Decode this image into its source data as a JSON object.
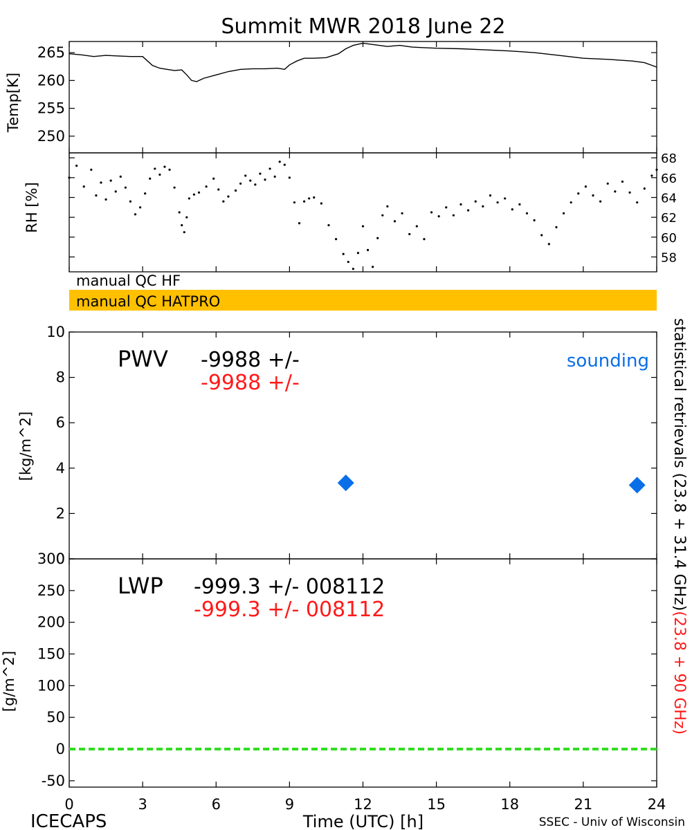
{
  "title": "Summit MWR 2018 June 22",
  "footer": {
    "left": "ICECAPS",
    "center": "Time (UTC) [h]",
    "right": "SSEC - Univ of Wisconsin"
  },
  "x_axis": {
    "label": "Time (UTC) [h]",
    "range": [
      0,
      24
    ],
    "ticks": [
      0,
      3,
      6,
      9,
      12,
      15,
      18,
      21,
      24
    ]
  },
  "flags": {
    "hf_label": "manual QC HF",
    "hatpro_label": "manual QC HATPRO",
    "hatpro_color": "#ffc000"
  },
  "right_label": {
    "black": "statistical retrievals (23.8 + 31.4 GHz)",
    "red": "(23.8 + 90 GHz)"
  },
  "pwv_panel": {
    "name": "PWV",
    "value_black": "-9988 +/-",
    "value_red": "-9988 +/-",
    "legend": "sounding",
    "ylabel": "[kg/m^2]"
  },
  "lwp_panel": {
    "name": "LWP",
    "value_black": "-999.3 +/- 008112",
    "value_red": "-999.3 +/- 008112",
    "ylabel": "[g/m^2]"
  },
  "colors": {
    "sounding": "#0a6ee8",
    "red_text": "#ff1a1a",
    "zero_line": "#33dd22",
    "flag_bar": "#ffc000"
  },
  "chart_data": [
    {
      "type": "line",
      "title": "Summit MWR 2018 June 22",
      "ylabel": "Temp[K]",
      "xlim": [
        0,
        24
      ],
      "ylim": [
        247,
        267
      ],
      "yticks": [
        250,
        255,
        260,
        265
      ],
      "series": [
        {
          "x": [
            0,
            0.5,
            1,
            1.5,
            2,
            2.5,
            3,
            3.2,
            3.4,
            3.7,
            4.0,
            4.3,
            4.6,
            4.8,
            5.0,
            5.2,
            5.5,
            6.0,
            6.5,
            7.0,
            7.5,
            8.0,
            8.5,
            8.8,
            9.0,
            9.3,
            9.6,
            10.0,
            10.5,
            11.0,
            11.3,
            11.6,
            12.0,
            12.5,
            13.0,
            13.5,
            14.0,
            14.5,
            15.0,
            16.0,
            17.0,
            18.0,
            19.0,
            20.0,
            21.0,
            22.0,
            23.0,
            23.5,
            24.0
          ],
          "y": [
            264.8,
            264.6,
            264.3,
            264.5,
            264.4,
            264.3,
            264.3,
            263.5,
            262.7,
            262.2,
            262.0,
            261.8,
            261.9,
            261.0,
            260.0,
            259.8,
            260.4,
            261.0,
            261.6,
            262.0,
            262.1,
            262.1,
            262.2,
            262.0,
            262.8,
            263.5,
            264.0,
            264.0,
            264.1,
            264.8,
            265.7,
            266.3,
            266.7,
            266.4,
            266.1,
            266.3,
            266.0,
            265.9,
            265.8,
            265.7,
            265.5,
            265.3,
            265.0,
            264.5,
            264.0,
            263.8,
            263.5,
            263.2,
            262.4
          ]
        }
      ]
    },
    {
      "type": "scatter",
      "ylabel": "RH [%]",
      "xlim": [
        0,
        24
      ],
      "ylim": [
        56.5,
        68.5
      ],
      "yticks": [
        58,
        60,
        62,
        64,
        66,
        68
      ],
      "series": [
        {
          "x": [
            0,
            0.3,
            0.6,
            0.9,
            1.1,
            1.3,
            1.5,
            1.7,
            1.9,
            2.1,
            2.3,
            2.5,
            2.7,
            2.9,
            3.1,
            3.3,
            3.5,
            3.7,
            3.9,
            4.1,
            4.3,
            4.5,
            4.6,
            4.7,
            4.8,
            4.9,
            5.1,
            5.3,
            5.6,
            5.9,
            6.1,
            6.3,
            6.5,
            6.8,
            7.0,
            7.2,
            7.4,
            7.6,
            7.8,
            8.0,
            8.2,
            8.4,
            8.6,
            8.8,
            9.0,
            9.2,
            9.4,
            9.6,
            9.8,
            10.0,
            10.3,
            10.6,
            10.9,
            11.2,
            11.4,
            11.6,
            11.8,
            12.0,
            12.2,
            12.4,
            12.6,
            12.8,
            13.0,
            13.3,
            13.6,
            13.9,
            14.2,
            14.5,
            14.8,
            15.1,
            15.4,
            15.7,
            16.0,
            16.3,
            16.6,
            16.9,
            17.2,
            17.5,
            17.8,
            18.1,
            18.4,
            18.7,
            19.0,
            19.3,
            19.6,
            19.9,
            20.2,
            20.5,
            20.8,
            21.1,
            21.4,
            21.7,
            22.0,
            22.3,
            22.6,
            22.9,
            23.2,
            23.5,
            23.8,
            24.0
          ],
          "y": [
            66.0,
            67.2,
            65.1,
            66.8,
            64.2,
            65.5,
            63.8,
            65.7,
            64.6,
            66.1,
            65.0,
            63.6,
            62.3,
            63.0,
            64.4,
            65.9,
            66.9,
            66.3,
            67.1,
            66.8,
            65.0,
            62.5,
            61.2,
            60.5,
            62.0,
            63.9,
            64.3,
            64.5,
            65.1,
            65.9,
            64.8,
            63.6,
            64.1,
            64.7,
            65.4,
            66.2,
            65.7,
            65.3,
            66.4,
            65.8,
            66.9,
            66.1,
            67.6,
            67.3,
            66.0,
            63.5,
            61.4,
            63.6,
            63.9,
            64.0,
            63.4,
            61.2,
            59.8,
            58.3,
            57.5,
            56.8,
            58.4,
            61.1,
            58.7,
            57.0,
            59.9,
            62.2,
            63.1,
            61.6,
            62.4,
            60.3,
            61.1,
            59.8,
            62.5,
            62.1,
            63.0,
            62.2,
            63.3,
            62.7,
            63.6,
            63.1,
            64.2,
            63.5,
            63.9,
            62.8,
            63.3,
            62.4,
            61.7,
            60.2,
            59.3,
            61.0,
            62.4,
            63.5,
            64.4,
            65.1,
            64.2,
            63.6,
            65.4,
            64.6,
            65.6,
            64.5,
            63.5,
            64.9,
            66.2,
            66.8
          ]
        }
      ]
    },
    {
      "type": "scatter",
      "ylabel": "[kg/m^2]",
      "xlim": [
        0,
        24
      ],
      "ylim": [
        0,
        10
      ],
      "yticks": [
        0,
        2,
        4,
        6,
        8,
        10
      ],
      "series": [
        {
          "name": "sounding",
          "x": [
            11.3,
            23.2
          ],
          "y": [
            3.35,
            3.25
          ]
        }
      ]
    },
    {
      "type": "line",
      "ylabel": "[g/m^2]",
      "xlim": [
        0,
        24
      ],
      "ylim": [
        -60,
        300
      ],
      "yticks": [
        -50,
        0,
        50,
        100,
        150,
        200,
        250,
        300
      ],
      "series": [
        {
          "x": [
            0,
            24
          ],
          "y": [
            0,
            0
          ]
        }
      ]
    }
  ]
}
